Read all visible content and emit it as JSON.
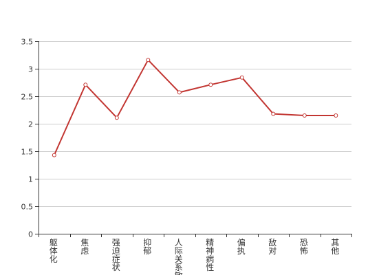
{
  "chart_data": {
    "type": "line",
    "categories": [
      "躯体化",
      "焦虑",
      "强迫症状",
      "抑郁",
      "人际关系敏感",
      "精神病性",
      "偏执",
      "敌对",
      "恐怖",
      "其他"
    ],
    "series": [
      {
        "values": [
          1.43,
          2.71,
          2.11,
          3.16,
          2.57,
          2.71,
          2.84,
          2.18,
          2.15,
          2.15
        ]
      }
    ],
    "ylim": [
      0,
      3.5
    ],
    "yticks": [
      0,
      0.5,
      1,
      1.5,
      2,
      2.5,
      3,
      3.5
    ],
    "ytick_labels": [
      "0",
      "0.5",
      "1",
      "1.5",
      "2",
      "2.5",
      "3",
      "3.5"
    ],
    "grid": "horizontal",
    "title": "",
    "xlabel": "",
    "ylabel": "",
    "colors": {
      "line": "#c23531",
      "point_fill": "#ffffff",
      "grid": "#cccccc",
      "axis": "#333333"
    }
  }
}
